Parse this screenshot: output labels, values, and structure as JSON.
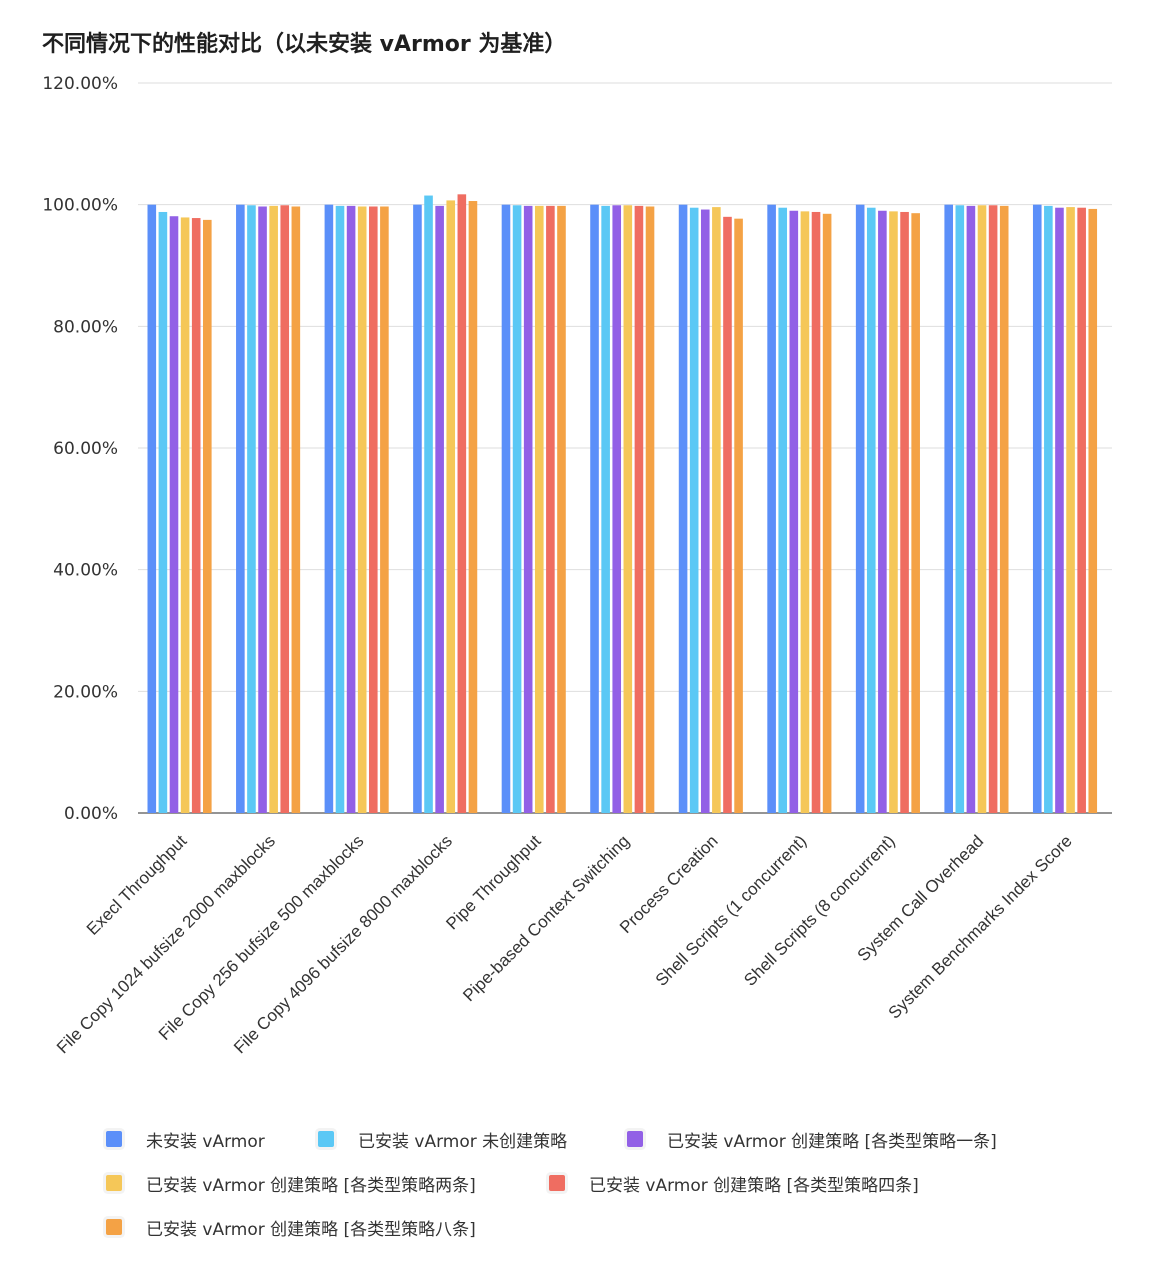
{
  "chart_data": {
    "type": "bar",
    "title": "不同情况下的性能对比（以未安装 vArmor 为基准）",
    "xlabel": "",
    "ylabel": "",
    "ylim": [
      0,
      120
    ],
    "y_ticks": [
      "0.00%",
      "20.00%",
      "40.00%",
      "60.00%",
      "80.00%",
      "100.00%",
      "120.00%"
    ],
    "grid": true,
    "legend_position": "bottom",
    "categories": [
      "Execl Throughput",
      "File Copy 1024 bufsize 2000 maxblocks",
      "File Copy 256 bufsize 500 maxblocks",
      "File Copy 4096 bufsize 8000 maxblocks",
      "Pipe Throughput",
      "Pipe-based Context Switching",
      "Process Creation",
      "Shell Scripts (1 concurrent)",
      "Shell Scripts (8 concurrent)",
      "System Call Overhead",
      "System Benchmarks Index Score"
    ],
    "series": [
      {
        "name": "未安装 vArmor",
        "color": "#5b8ff9",
        "values": [
          100.0,
          100.0,
          100.0,
          100.0,
          100.0,
          100.0,
          100.0,
          100.0,
          100.0,
          100.0,
          100.0
        ]
      },
      {
        "name": "已安装 vArmor 未创建策略",
        "color": "#5bc8f5",
        "values": [
          98.8,
          99.9,
          99.8,
          101.5,
          99.9,
          99.8,
          99.5,
          99.5,
          99.5,
          99.9,
          99.8
        ]
      },
      {
        "name": "已安装 vArmor 创建策略 [各类型策略一条]",
        "color": "#9260e6",
        "values": [
          98.1,
          99.7,
          99.8,
          99.8,
          99.8,
          99.9,
          99.2,
          99.0,
          99.0,
          99.8,
          99.5
        ]
      },
      {
        "name": "已安装 vArmor 创建策略 [各类型策略两条]",
        "color": "#f5c758",
        "values": [
          97.9,
          99.8,
          99.7,
          100.7,
          99.8,
          99.9,
          99.6,
          98.9,
          98.9,
          99.9,
          99.6
        ]
      },
      {
        "name": "已安装 vArmor 创建策略 [各类型策略四条]",
        "color": "#ef6d61",
        "values": [
          97.8,
          99.9,
          99.7,
          101.7,
          99.8,
          99.8,
          98.0,
          98.8,
          98.8,
          99.9,
          99.5
        ]
      },
      {
        "name": "已安装 vArmor 创建策略 [各类型策略八条]",
        "color": "#f4a245",
        "values": [
          97.5,
          99.7,
          99.7,
          100.6,
          99.8,
          99.7,
          97.7,
          98.5,
          98.6,
          99.8,
          99.3
        ]
      }
    ]
  }
}
